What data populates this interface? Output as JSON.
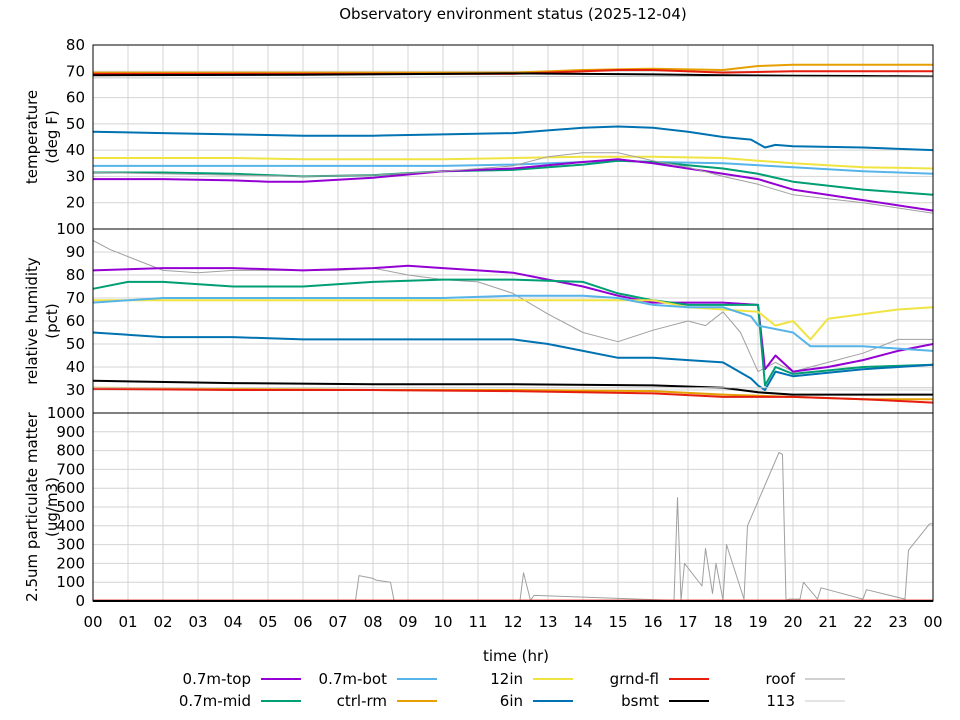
{
  "chart_data": {
    "type": "line",
    "title": "Observatory environment status (2025-12-04)",
    "xlabel": "time (hr)",
    "x_ticks": [
      "00",
      "01",
      "02",
      "03",
      "04",
      "05",
      "06",
      "07",
      "08",
      "09",
      "10",
      "11",
      "12",
      "13",
      "14",
      "15",
      "16",
      "17",
      "18",
      "19",
      "20",
      "21",
      "22",
      "23",
      "00"
    ],
    "grid": true,
    "legend_placement": "bottom",
    "legend": [
      {
        "name": "0.7m-top",
        "color": "#9400d3"
      },
      {
        "name": "0.7m-bot",
        "color": "#56b4e9"
      },
      {
        "name": "12in",
        "color": "#f0e442"
      },
      {
        "name": "grnd-fl",
        "color": "#e51e10"
      },
      {
        "name": "roof",
        "color": "#a0a0a0"
      },
      {
        "name": "0.7m-mid",
        "color": "#009e73"
      },
      {
        "name": "ctrl-rm",
        "color": "#e69f00"
      },
      {
        "name": "6in",
        "color": "#0072b2"
      },
      {
        "name": "bsmt",
        "color": "#000000"
      },
      {
        "name": "113",
        "color": "#c8c8c8"
      }
    ],
    "panels": [
      {
        "ylabel": [
          "temperature",
          "(deg F)"
        ],
        "ylim": [
          10,
          80
        ],
        "yticks": [
          20,
          30,
          40,
          50,
          60,
          70,
          80
        ],
        "series": [
          {
            "name": "ctrl-rm",
            "color": "#e69f00",
            "x": [
              0,
              8,
              12,
              14,
              16,
              18,
              19,
              20,
              22,
              24
            ],
            "y": [
              69.5,
              69.5,
              69.5,
              70.5,
              71,
              70.5,
              72,
              72.5,
              72.5,
              72.5
            ]
          },
          {
            "name": "grnd-fl",
            "color": "#e51e10",
            "x": [
              0,
              6,
              12,
              15,
              16,
              18,
              20,
              24
            ],
            "y": [
              69,
              69,
              69,
              70.5,
              70.5,
              69.5,
              70,
              70
            ]
          },
          {
            "name": "bsmt",
            "color": "#000000",
            "x": [
              0,
              6,
              10,
              12,
              16,
              18,
              20,
              22,
              24
            ],
            "y": [
              68.5,
              68.7,
              69,
              69.2,
              68.8,
              68.5,
              68.3,
              68.2,
              68
            ]
          },
          {
            "name": "6in",
            "color": "#0072b2",
            "x": [
              0,
              2,
              4,
              6,
              8,
              10,
              12,
              13,
              14,
              15,
              16,
              17,
              18,
              18.8,
              19.2,
              19.5,
              20,
              22,
              24
            ],
            "y": [
              47,
              46.5,
              46,
              45.5,
              45.5,
              46,
              46.5,
              47.5,
              48.5,
              49,
              48.5,
              47,
              45,
              44,
              41,
              42,
              41.5,
              41,
              40
            ]
          },
          {
            "name": "12in",
            "color": "#f0e442",
            "x": [
              0,
              2,
              4,
              6,
              8,
              10,
              12,
              14,
              16,
              18,
              19,
              20,
              22,
              24
            ],
            "y": [
              37,
              37,
              37,
              36.5,
              36.5,
              36.5,
              37,
              37.5,
              37.5,
              37,
              36,
              35,
              33.5,
              33
            ]
          },
          {
            "name": "0.7m-bot",
            "color": "#56b4e9",
            "x": [
              0,
              2,
              4,
              6,
              8,
              10,
              12,
              14,
              15,
              16,
              18,
              20,
              22,
              24
            ],
            "y": [
              34,
              34,
              34,
              34,
              34,
              34,
              34.5,
              35.5,
              36,
              35.5,
              35,
              33.5,
              32,
              31
            ]
          },
          {
            "name": "0.7m-mid",
            "color": "#009e73",
            "x": [
              0,
              2,
              4,
              6,
              8,
              10,
              12,
              14,
              15,
              16,
              18,
              19,
              20,
              22,
              24
            ],
            "y": [
              31.5,
              31.5,
              31,
              30,
              30.5,
              32,
              32.5,
              34.5,
              36,
              35.5,
              33,
              31,
              28,
              25,
              23
            ]
          },
          {
            "name": "0.7m-top",
            "color": "#9400d3",
            "x": [
              0,
              2,
              4,
              5,
              6,
              8,
              10,
              12,
              14,
              15,
              16,
              18,
              19,
              20,
              22,
              24
            ],
            "y": [
              29,
              29,
              28.5,
              28,
              28,
              29.5,
              32,
              33,
              35.5,
              36.5,
              35,
              31,
              29,
              25,
              21,
              17
            ]
          },
          {
            "name": "roof",
            "color": "#a0a0a0",
            "x": [
              0,
              4,
              6,
              8,
              10,
              12,
              13,
              14,
              15,
              16,
              17,
              18,
              19,
              20,
              22,
              24
            ],
            "y": [
              31.5,
              30.5,
              30,
              30.5,
              32,
              34,
              37.5,
              39,
              39,
              36,
              33.5,
              30,
              27,
              23,
              20,
              16
            ]
          },
          {
            "name": "113",
            "color": "#c8c8c8",
            "x": [
              0,
              6,
              12,
              18,
              24
            ],
            "y": [
              67.5,
              67.5,
              68,
              68,
              67.8
            ]
          }
        ]
      },
      {
        "ylabel": [
          "relative humidity",
          "(pct)"
        ],
        "ylim": [
          20,
          100
        ],
        "yticks": [
          30,
          40,
          50,
          60,
          70,
          80,
          90,
          100
        ],
        "series": [
          {
            "name": "roof",
            "color": "#a0a0a0",
            "x": [
              0,
              0.5,
              1,
              2,
              3,
              4,
              5,
              6,
              7,
              8,
              9,
              10,
              11,
              12,
              13,
              14,
              15,
              16,
              17,
              17.5,
              18,
              18.5,
              19,
              19.5,
              20,
              21,
              22,
              23,
              24
            ],
            "y": [
              95,
              91,
              88,
              82,
              81,
              82,
              82,
              82,
              82,
              83,
              80,
              78,
              77,
              72,
              63,
              55,
              51,
              56,
              60,
              58,
              64,
              55,
              38,
              42,
              38,
              42,
              46,
              52,
              52
            ]
          },
          {
            "name": "0.7m-top",
            "color": "#9400d3",
            "x": [
              0,
              2,
              4,
              6,
              8,
              9,
              10,
              11,
              12,
              13,
              14,
              15,
              16,
              17,
              18,
              19,
              19.2,
              19.5,
              20,
              21,
              22,
              23,
              24
            ],
            "y": [
              82,
              83,
              83,
              82,
              83,
              84,
              83,
              82,
              81,
              78,
              75,
              71,
              68,
              68,
              68,
              67,
              39,
              45,
              38,
              40,
              43,
              47,
              50
            ]
          },
          {
            "name": "0.7m-mid",
            "color": "#009e73",
            "x": [
              0,
              1,
              2,
              4,
              6,
              8,
              10,
              12,
              14,
              15,
              16,
              17,
              18,
              19,
              19.2,
              19.5,
              20,
              22,
              24
            ],
            "y": [
              74,
              77,
              77,
              75,
              75,
              77,
              78,
              78,
              77,
              72,
              69,
              67,
              67,
              67,
              32,
              40,
              37,
              40,
              41
            ]
          },
          {
            "name": "12in",
            "color": "#f0e442",
            "x": [
              0,
              2,
              4,
              6,
              8,
              10,
              12,
              14,
              16,
              17,
              18,
              19,
              19.5,
              20,
              20.5,
              21,
              22,
              23,
              24
            ],
            "y": [
              69,
              69,
              69,
              69,
              69,
              69,
              69,
              69,
              69,
              66,
              65,
              64,
              58,
              60,
              52,
              61,
              63,
              65,
              66
            ]
          },
          {
            "name": "0.7m-bot",
            "color": "#56b4e9",
            "x": [
              0,
              2,
              4,
              6,
              8,
              10,
              12,
              14,
              15,
              16,
              17,
              18,
              18.8,
              19,
              20,
              20.5,
              22,
              24
            ],
            "y": [
              68,
              70,
              70,
              70,
              70,
              70,
              71,
              71,
              70,
              67,
              66,
              66,
              62,
              58,
              55,
              49,
              49,
              47
            ]
          },
          {
            "name": "6in",
            "color": "#0072b2",
            "x": [
              0,
              2,
              4,
              6,
              8,
              10,
              12,
              13,
              14,
              15,
              16,
              17,
              18,
              18.8,
              19,
              19.2,
              19.5,
              20,
              22,
              24
            ],
            "y": [
              55,
              53,
              53,
              52,
              52,
              52,
              52,
              50,
              47,
              44,
              44,
              43,
              42,
              35,
              32,
              30,
              38,
              36,
              39,
              41
            ]
          },
          {
            "name": "bsmt",
            "color": "#000000",
            "x": [
              0,
              4,
              8,
              12,
              16,
              18,
              19,
              20,
              24
            ],
            "y": [
              34,
              33,
              32.5,
              32.5,
              32,
              31,
              29,
              28,
              28
            ]
          },
          {
            "name": "ctrl-rm",
            "color": "#e69f00",
            "x": [
              0,
              4,
              8,
              12,
              16,
              18,
              20,
              22,
              24
            ],
            "y": [
              31,
              30.5,
              30,
              30,
              29.5,
              28,
              27,
              26,
              26
            ]
          },
          {
            "name": "grnd-fl",
            "color": "#e51e10",
            "x": [
              0,
              4,
              8,
              12,
              16,
              18,
              20,
              22,
              24
            ],
            "y": [
              30.5,
              30,
              30,
              29.5,
              28.5,
              27,
              27,
              26,
              24.5
            ]
          },
          {
            "name": "113",
            "color": "#c8c8c8",
            "x": [
              0,
              12,
              24
            ],
            "y": [
              31,
              31,
              31
            ]
          }
        ]
      },
      {
        "ylabel": [
          "2.5um particulate matter",
          "(ug/m3)"
        ],
        "ylim": [
          0,
          1000
        ],
        "yticks": [
          0,
          100,
          200,
          300,
          400,
          500,
          600,
          700,
          800,
          900,
          1000
        ],
        "series": [
          {
            "name": "roof",
            "color": "#a0a0a0",
            "x": [
              0,
              7.5,
              7.6,
              8,
              8.1,
              8.5,
              8.6,
              12.2,
              12.3,
              12.5,
              12.6,
              16.6,
              16.7,
              16.8,
              16.9,
              17.4,
              17.5,
              17.7,
              17.8,
              18,
              18.1,
              18.6,
              18.7,
              19.6,
              19.7,
              19.8,
              19.9,
              20.2,
              20.3,
              20.7,
              20.8,
              22,
              22.1,
              23.2,
              23.3,
              23.9,
              24
            ],
            "y": [
              3,
              3,
              135,
              120,
              110,
              100,
              3,
              3,
              150,
              3,
              30,
              3,
              550,
              3,
              200,
              80,
              280,
              40,
              200,
              5,
              300,
              10,
              400,
              790,
              780,
              5,
              10,
              10,
              100,
              10,
              70,
              10,
              60,
              10,
              270,
              410,
              410
            ]
          },
          {
            "name": "grnd-fl",
            "color": "#e51e10",
            "x": [
              0,
              24
            ],
            "y": [
              2,
              2
            ]
          },
          {
            "name": "bsmt",
            "color": "#000000",
            "x": [
              0,
              24
            ],
            "y": [
              0,
              0
            ]
          }
        ]
      }
    ]
  }
}
